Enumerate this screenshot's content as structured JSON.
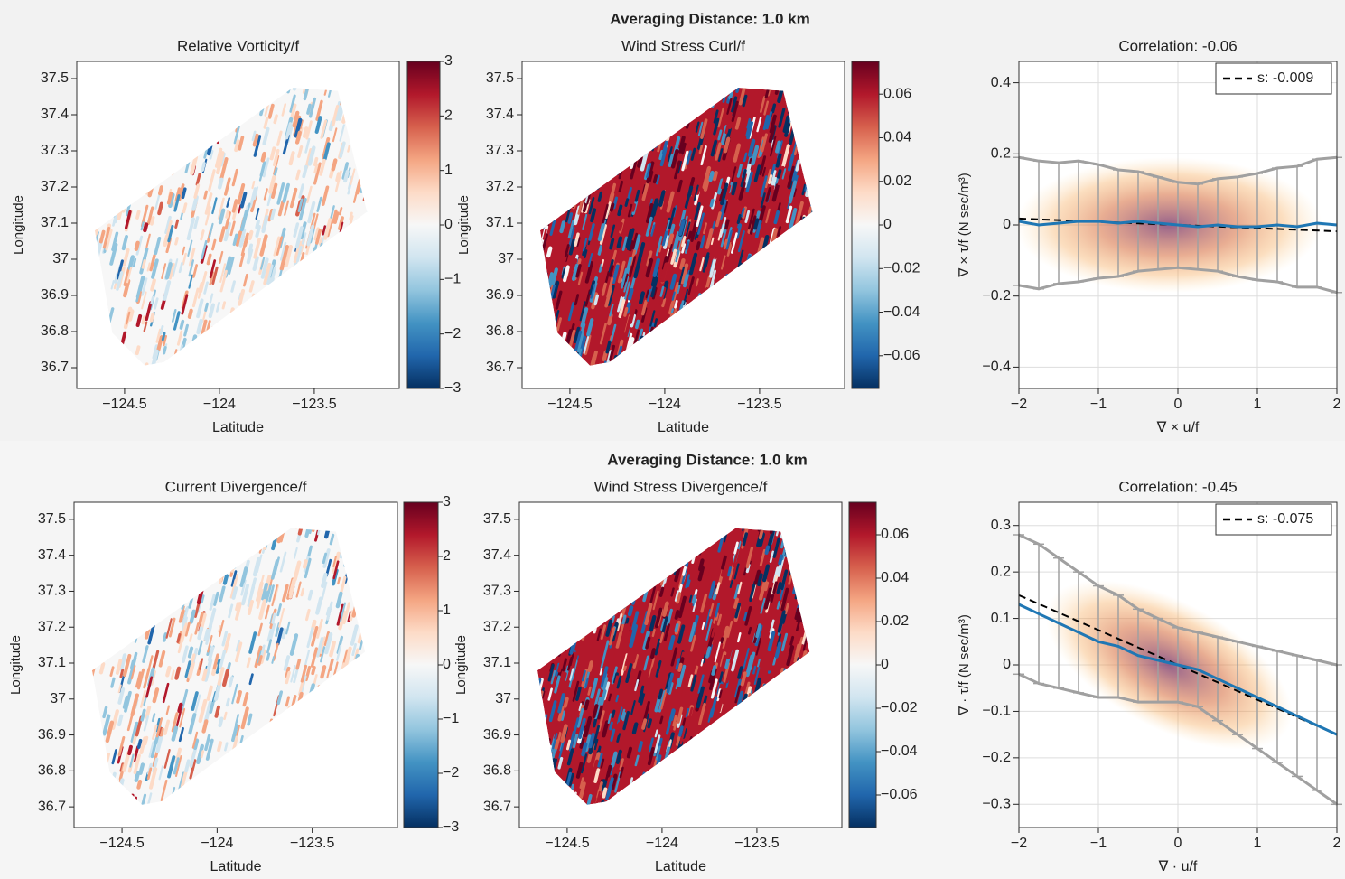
{
  "rows": [
    {
      "title": "Averaging Distance: 1.0 km"
    },
    {
      "title": "Averaging Distance: 1.0 km"
    }
  ],
  "chart_data": [
    {
      "type": "heatmap",
      "title": "Relative Vorticity/f",
      "x_label": "Latitude",
      "y_label": "Longitude",
      "xlim": [
        -124.752,
        -123.052
      ],
      "ylim": [
        36.6425,
        37.5475
      ],
      "xticks": [
        {
          "value": -124.5,
          "label": "−124.5"
        },
        {
          "value": -124,
          "label": "−124"
        },
        {
          "value": -123.5,
          "label": "−123.5"
        }
      ],
      "yticks": [
        36.7,
        36.8,
        36.9,
        37,
        37.1,
        37.2,
        37.3,
        37.4,
        37.5
      ],
      "colorbar": {
        "lim": [
          -3,
          3
        ],
        "ticks": [
          {
            "value": -3,
            "label": "−3"
          },
          {
            "value": -2,
            "label": "−2"
          },
          {
            "value": -1,
            "label": "−1"
          },
          0,
          1,
          2,
          3
        ],
        "colormap": [
          "#053061",
          "#2166ac",
          "#4393c3",
          "#92c5de",
          "#d1e5f0",
          "#f7f7f7",
          "#fddbc7",
          "#f4a582",
          "#d6604d",
          "#b2182b",
          "#67001f"
        ]
      }
    },
    {
      "type": "heatmap",
      "title": "Wind Stress Curl/f",
      "x_label": "Latitude",
      "y_label": "Longitude",
      "xlim": [
        -124.752,
        -123.052
      ],
      "ylim": [
        36.6425,
        37.5475
      ],
      "xticks": [
        {
          "value": -124.5,
          "label": "−124.5"
        },
        {
          "value": -124,
          "label": "−124"
        },
        {
          "value": -123.5,
          "label": "−123.5"
        }
      ],
      "yticks": [
        36.7,
        36.8,
        36.9,
        37,
        37.1,
        37.2,
        37.3,
        37.4,
        37.5
      ],
      "colorbar": {
        "lim": [
          -0.075,
          0.075
        ],
        "ticks": [
          {
            "value": -0.06,
            "label": "−0.06"
          },
          {
            "value": -0.04,
            "label": "−0.04"
          },
          {
            "value": -0.02,
            "label": "−0.02"
          },
          0,
          0.02,
          0.04,
          0.06
        ],
        "colormap": [
          "#053061",
          "#2166ac",
          "#4393c3",
          "#92c5de",
          "#d1e5f0",
          "#f7f7f7",
          "#fddbc7",
          "#f4a582",
          "#d6604d",
          "#b2182b",
          "#67001f"
        ]
      }
    },
    {
      "type": "scatter",
      "title": "Correlation: -0.06",
      "x_label": "∇ × u/f",
      "y_label": "∇ × τ/f  (N sec/m³)",
      "xlim": [
        -2,
        2
      ],
      "ylim": [
        -0.46,
        0.46
      ],
      "grid": true,
      "legend": "upper right",
      "xticks": [
        {
          "value": -2,
          "label": "−2"
        },
        {
          "value": -1,
          "label": "−1"
        },
        0,
        1,
        2
      ],
      "yticks": [
        {
          "value": -0.4,
          "label": "−0.4"
        },
        {
          "value": -0.2,
          "label": "−0.2"
        },
        0,
        0.2,
        0.4
      ],
      "x": [
        -2,
        -1.75,
        -1.5,
        -1.25,
        -1,
        -0.75,
        -0.5,
        -0.25,
        0,
        0.25,
        0.5,
        0.75,
        1,
        1.25,
        1.5,
        1.75,
        2
      ],
      "series": [
        {
          "color": "#1f77b4",
          "error_color": "#a0a0a0",
          "values": [
            0.01,
            0.0,
            0.005,
            0.01,
            0.01,
            0.005,
            0.01,
            0.005,
            0.0,
            -0.005,
            0.0,
            -0.005,
            -0.005,
            0.0,
            -0.005,
            0.005,
            0.0
          ],
          "errors": [
            0.18,
            0.18,
            0.17,
            0.17,
            0.16,
            0.15,
            0.14,
            0.13,
            0.12,
            0.12,
            0.13,
            0.14,
            0.15,
            0.16,
            0.17,
            0.18,
            0.19
          ]
        },
        {
          "name": "s: -0.009",
          "color": "#000000",
          "dash": true,
          "x": [
            -2,
            2
          ],
          "values": [
            0.018,
            -0.018
          ]
        }
      ]
    },
    {
      "type": "heatmap",
      "title": "Current Divergence/f",
      "x_label": "Latitude",
      "y_label": "Longitude",
      "xlim": [
        -124.752,
        -123.052
      ],
      "ylim": [
        36.6425,
        37.5475
      ],
      "xticks": [
        {
          "value": -124.5,
          "label": "−124.5"
        },
        {
          "value": -124,
          "label": "−124"
        },
        {
          "value": -123.5,
          "label": "−123.5"
        }
      ],
      "yticks": [
        36.7,
        36.8,
        36.9,
        37,
        37.1,
        37.2,
        37.3,
        37.4,
        37.5
      ],
      "colorbar": {
        "lim": [
          -3,
          3
        ],
        "ticks": [
          {
            "value": -3,
            "label": "−3"
          },
          {
            "value": -2,
            "label": "−2"
          },
          {
            "value": -1,
            "label": "−1"
          },
          0,
          1,
          2,
          3
        ],
        "colormap": [
          "#053061",
          "#2166ac",
          "#4393c3",
          "#92c5de",
          "#d1e5f0",
          "#f7f7f7",
          "#fddbc7",
          "#f4a582",
          "#d6604d",
          "#b2182b",
          "#67001f"
        ]
      }
    },
    {
      "type": "heatmap",
      "title": "Wind Stress Divergence/f",
      "x_label": "Latitude",
      "y_label": "Longitude",
      "xlim": [
        -124.752,
        -123.052
      ],
      "ylim": [
        36.6425,
        37.5475
      ],
      "xticks": [
        {
          "value": -124.5,
          "label": "−124.5"
        },
        {
          "value": -124,
          "label": "−124"
        },
        {
          "value": -123.5,
          "label": "−123.5"
        }
      ],
      "yticks": [
        36.7,
        36.8,
        36.9,
        37,
        37.1,
        37.2,
        37.3,
        37.4,
        37.5
      ],
      "colorbar": {
        "lim": [
          -0.075,
          0.075
        ],
        "ticks": [
          {
            "value": -0.06,
            "label": "−0.06"
          },
          {
            "value": -0.04,
            "label": "−0.04"
          },
          {
            "value": -0.02,
            "label": "−0.02"
          },
          0,
          0.02,
          0.04,
          0.06
        ],
        "colormap": [
          "#053061",
          "#2166ac",
          "#4393c3",
          "#92c5de",
          "#d1e5f0",
          "#f7f7f7",
          "#fddbc7",
          "#f4a582",
          "#d6604d",
          "#b2182b",
          "#67001f"
        ]
      }
    },
    {
      "type": "scatter",
      "title": "Correlation: -0.45",
      "x_label": "∇ · u/f",
      "y_label": "∇ · τ/f  (N sec/m³)",
      "xlim": [
        -2,
        2
      ],
      "ylim": [
        -0.35,
        0.35
      ],
      "grid": true,
      "legend": "upper right",
      "xticks": [
        {
          "value": -2,
          "label": "−2"
        },
        {
          "value": -1,
          "label": "−1"
        },
        0,
        1,
        2
      ],
      "yticks": [
        {
          "value": -0.3,
          "label": "−0.3"
        },
        {
          "value": -0.2,
          "label": "−0.2"
        },
        {
          "value": -0.1,
          "label": "−0.1"
        },
        0,
        0.1,
        0.2,
        0.3
      ],
      "x": [
        -2,
        -1.75,
        -1.5,
        -1.25,
        -1,
        -0.75,
        -0.5,
        -0.25,
        0,
        0.25,
        0.5,
        0.75,
        1,
        1.25,
        1.5,
        1.75,
        2
      ],
      "series": [
        {
          "color": "#1f77b4",
          "error_color": "#a0a0a0",
          "values": [
            0.13,
            0.11,
            0.09,
            0.07,
            0.05,
            0.04,
            0.02,
            0.01,
            0.0,
            -0.01,
            -0.03,
            -0.05,
            -0.07,
            -0.09,
            -0.11,
            -0.13,
            -0.15
          ],
          "errors": [
            0.15,
            0.15,
            0.14,
            0.13,
            0.12,
            0.11,
            0.1,
            0.09,
            0.08,
            0.08,
            0.09,
            0.1,
            0.11,
            0.12,
            0.13,
            0.14,
            0.15
          ]
        },
        {
          "name": "s: -0.075",
          "color": "#000000",
          "dash": true,
          "x": [
            -2,
            2
          ],
          "values": [
            0.15,
            -0.15
          ]
        }
      ]
    }
  ]
}
